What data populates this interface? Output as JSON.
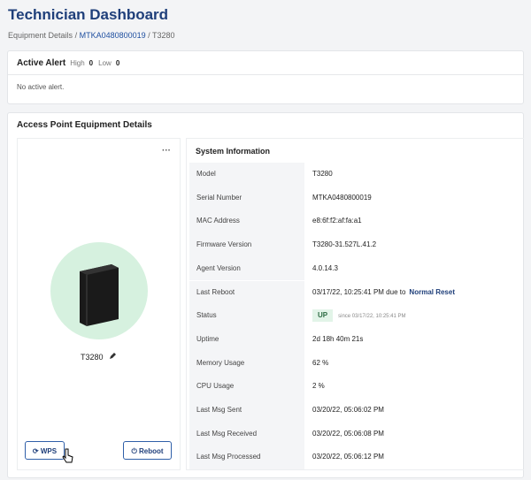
{
  "header": {
    "title": "Technician Dashboard",
    "breadcrumb": [
      "Equipment Details",
      "MTKA0480800019",
      "T3280"
    ],
    "separator": "/"
  },
  "alert": {
    "title": "Active Alert",
    "high_label": "High",
    "high_count": "0",
    "low_label": "Low",
    "low_count": "0",
    "message": "No active alert."
  },
  "details": {
    "title": "Access Point Equipment Details",
    "menu": "···",
    "device_name": "T3280",
    "buttons": [
      "WPS",
      "Reboot"
    ],
    "system": {
      "title": "System Information",
      "rows": [
        {
          "label": "Model",
          "value": "T3280"
        },
        {
          "label": "Serial Number",
          "value": "MTKA0480800019"
        },
        {
          "label": "MAC Address",
          "value": "e8:6f:f2:af:fa:a1"
        },
        {
          "label": "Firmware Version",
          "value": "T3280-31.527L.41.2"
        },
        {
          "label": "Agent Version",
          "value": "4.0.14.3"
        },
        {
          "label": "Last Reboot",
          "value": "03/17/22, 10:25:41 PM due to",
          "link": "Normal Reset"
        },
        {
          "label": "Status",
          "badge": "UP",
          "since": "since 03/17/22, 10:25:41 PM"
        },
        {
          "label": "Uptime",
          "value": "2d 18h 40m 21s"
        },
        {
          "label": "Memory Usage",
          "value": "62 %"
        },
        {
          "label": "CPU Usage",
          "value": "2 %"
        },
        {
          "label": "Last Msg Sent",
          "value": "03/20/22, 05:06:02 PM"
        },
        {
          "label": "Last Msg Received",
          "value": "03/20/22, 05:06:08 PM"
        },
        {
          "label": "Last Msg Processed",
          "value": "03/20/22, 05:06:12 PM"
        }
      ]
    }
  }
}
